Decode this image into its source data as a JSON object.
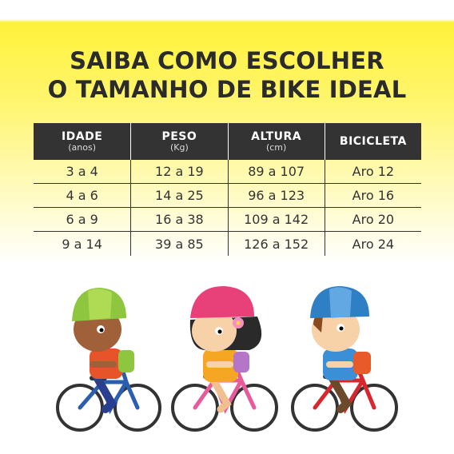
{
  "title": {
    "line1": "SAIBA COMO ESCOLHER",
    "line2": "O TAMANHO DE BIKE IDEAL"
  },
  "table": {
    "headers": [
      {
        "label": "IDADE",
        "unit": "(anos)"
      },
      {
        "label": "PESO",
        "unit": "(Kg)"
      },
      {
        "label": "ALTURA",
        "unit": "(cm)"
      },
      {
        "label": "BICICLETA",
        "unit": ""
      }
    ],
    "rows": [
      [
        "3 a 4",
        "12 a 19",
        "89 a 107",
        "Aro 12"
      ],
      [
        "4 a 6",
        "14 a 25",
        "96 a 123",
        "Aro 16"
      ],
      [
        "6 a 9",
        "16 a 38",
        "109 a 142",
        "Aro 20"
      ],
      [
        "9 a 14",
        "39 a 85",
        "126 a 152",
        "Aro 24"
      ]
    ]
  },
  "illustration": {
    "colors": {
      "helmet_green": "#8fc63f",
      "helmet_pink": "#e8417a",
      "helmet_blue": "#2f7fc4",
      "bike_blue": "#2a5fb0",
      "bike_pink": "#e85a9a",
      "bike_red": "#d8262c"
    }
  }
}
